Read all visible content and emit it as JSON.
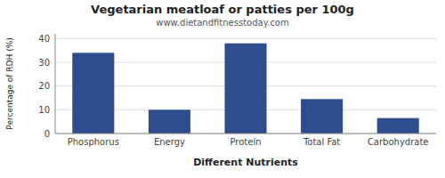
{
  "chart_data": {
    "type": "bar",
    "title": "Vegetarian meatloaf or patties per 100g",
    "subtitle": "www.dietandfitnesstoday.com",
    "xlabel": "Different Nutrients",
    "ylabel": "Percentage of RDH (%)",
    "categories": [
      "Phosphorus",
      "Energy",
      "Protein",
      "Total Fat",
      "Carbohydrate"
    ],
    "values": [
      34,
      10,
      38,
      14.5,
      6.5
    ],
    "color": "#2e4d8e",
    "ylim": [
      0,
      42
    ],
    "yticks": [
      0,
      10,
      20,
      30,
      40
    ],
    "grid": true
  }
}
